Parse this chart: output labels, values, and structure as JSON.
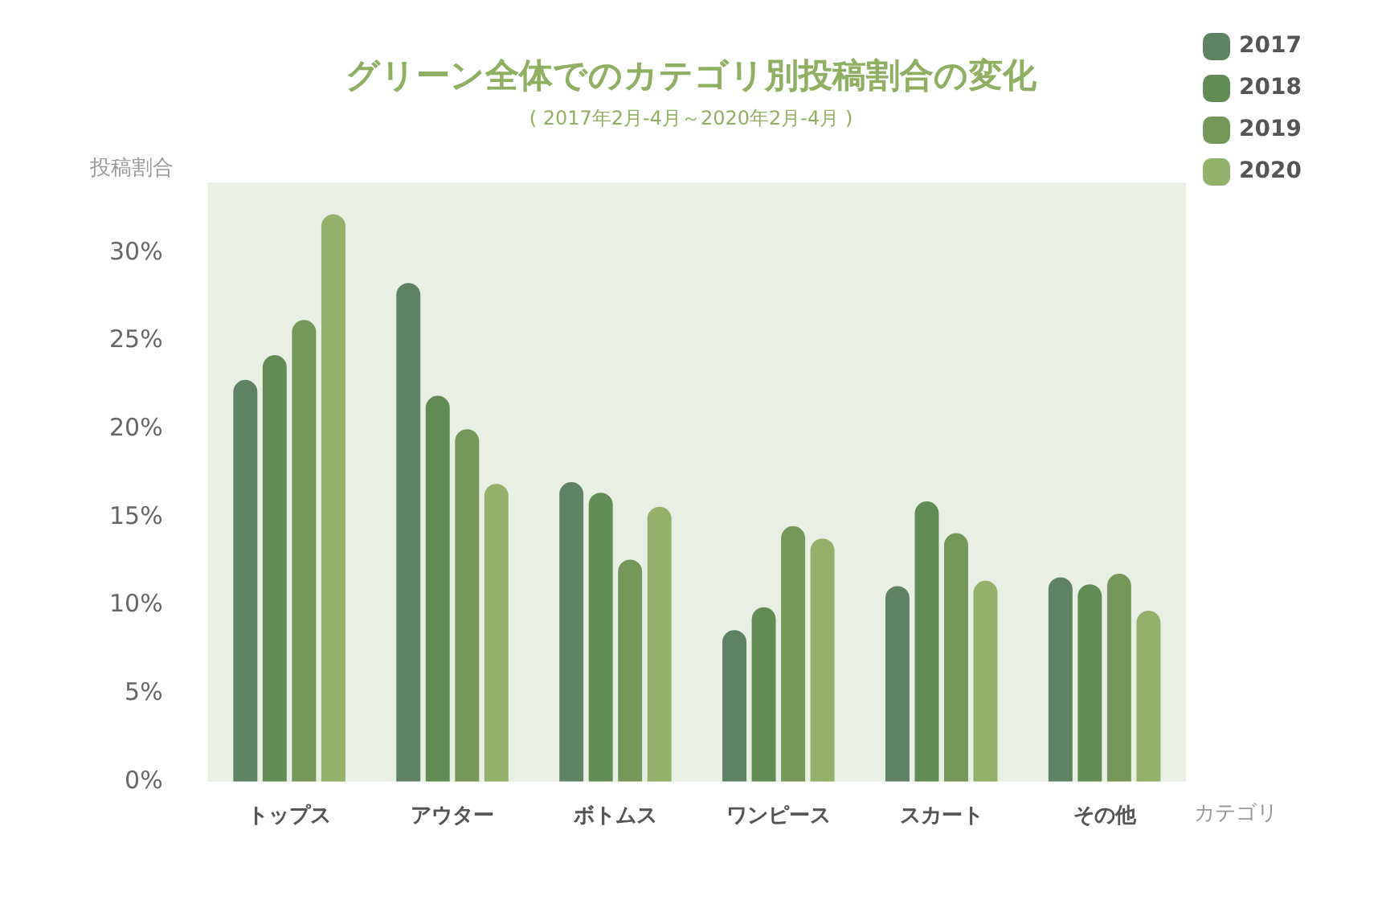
{
  "chart_data": {
    "type": "bar",
    "title": "グリーン全体でのカテゴリ別投稿割合の変化",
    "subtitle": "( 2017年2月-4月～2020年2月-4月 )",
    "xlabel": "カテゴリ",
    "ylabel": "投稿割合",
    "categories": [
      "トップス",
      "アウター",
      "ボトムス",
      "ワンピース",
      "スカート",
      "その他"
    ],
    "series": [
      {
        "name": "2017",
        "color": "#5e8262",
        "values": [
          22.8,
          28.3,
          17.0,
          8.6,
          11.1,
          11.6
        ]
      },
      {
        "name": "2018",
        "color": "#628c54",
        "values": [
          24.2,
          21.9,
          16.4,
          9.9,
          15.9,
          11.2
        ]
      },
      {
        "name": "2019",
        "color": "#75975a",
        "values": [
          26.2,
          20.0,
          12.6,
          14.5,
          14.1,
          11.8
        ]
      },
      {
        "name": "2020",
        "color": "#93b16a",
        "values": [
          32.2,
          16.9,
          15.6,
          13.8,
          11.4,
          9.7
        ]
      }
    ],
    "ylim": [
      0,
      34
    ],
    "yticks": [
      {
        "value": 0,
        "label": "0%"
      },
      {
        "value": 5,
        "label": "5%"
      },
      {
        "value": 10,
        "label": "10%"
      },
      {
        "value": 15,
        "label": "15%"
      },
      {
        "value": 20,
        "label": "20%"
      },
      {
        "value": 25,
        "label": "25%"
      },
      {
        "value": 30,
        "label": "30%"
      }
    ],
    "grid": false,
    "legend": "right"
  }
}
